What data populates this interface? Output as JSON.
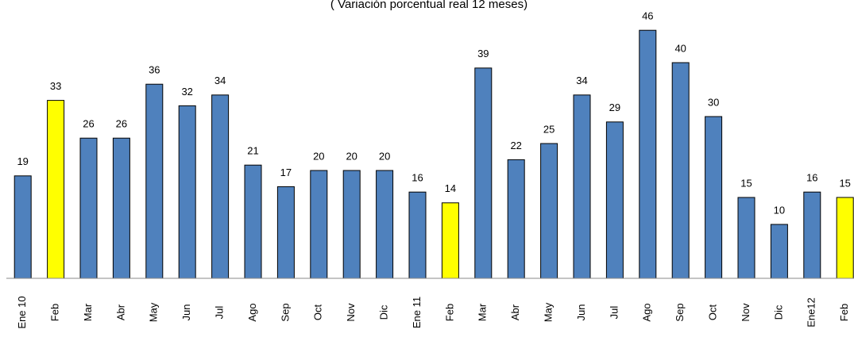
{
  "chart_data": {
    "type": "bar",
    "title": "( Variación porcentual real 12 meses)",
    "categories": [
      "Ene 10",
      "Feb",
      "Mar",
      "Abr",
      "May",
      "Jun",
      "Jul",
      "Ago",
      "Sep",
      "Oct",
      "Nov",
      "Dic",
      "Ene 11",
      "Feb",
      "Mar",
      "Abr",
      "May",
      "Jun",
      "Jul",
      "Ago",
      "Sep",
      "Oct",
      "Nov",
      "Dic",
      "Ene12",
      "Feb"
    ],
    "values": [
      19,
      33,
      26,
      26,
      36,
      32,
      34,
      21,
      17,
      20,
      20,
      20,
      16,
      14,
      39,
      22,
      25,
      34,
      29,
      46,
      40,
      30,
      15,
      10,
      16,
      15
    ],
    "colors": [
      "#4f81bd",
      "#ffff00",
      "#4f81bd",
      "#4f81bd",
      "#4f81bd",
      "#4f81bd",
      "#4f81bd",
      "#4f81bd",
      "#4f81bd",
      "#4f81bd",
      "#4f81bd",
      "#4f81bd",
      "#4f81bd",
      "#ffff00",
      "#4f81bd",
      "#4f81bd",
      "#4f81bd",
      "#4f81bd",
      "#4f81bd",
      "#4f81bd",
      "#4f81bd",
      "#4f81bd",
      "#4f81bd",
      "#4f81bd",
      "#4f81bd",
      "#ffff00"
    ],
    "ylim": [
      0,
      50
    ]
  }
}
